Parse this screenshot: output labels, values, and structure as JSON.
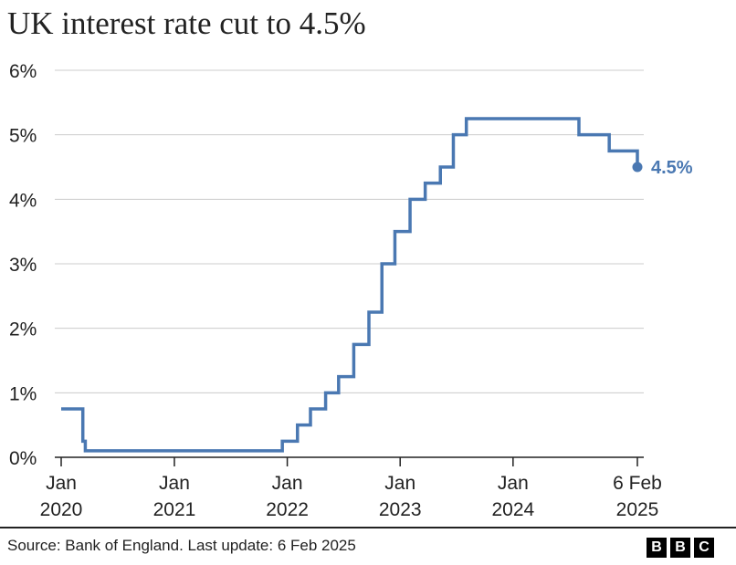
{
  "title": "UK interest rate cut to 4.5%",
  "source": "Source: Bank of England. Last update: 6 Feb 2025",
  "logo": [
    "B",
    "B",
    "C"
  ],
  "colors": {
    "line": "#4a78b2",
    "axis": "#222222",
    "grid": "#cccccc"
  },
  "chart_data": {
    "type": "line",
    "step": true,
    "title": "UK interest rate cut to 4.5%",
    "ylim": [
      0,
      6
    ],
    "yticks": [
      {
        "value": 0,
        "label": "0%"
      },
      {
        "value": 1,
        "label": "1%"
      },
      {
        "value": 2,
        "label": "2%"
      },
      {
        "value": 3,
        "label": "3%"
      },
      {
        "value": 4,
        "label": "4%"
      },
      {
        "value": 5,
        "label": "5%"
      },
      {
        "value": 6,
        "label": "6%"
      }
    ],
    "xlim": [
      "2020-01-01",
      "2025-02-06"
    ],
    "xticks": [
      {
        "date": "2020-01-01",
        "label1": "Jan",
        "label2": "2020"
      },
      {
        "date": "2021-01-01",
        "label1": "Jan",
        "label2": "2021"
      },
      {
        "date": "2022-01-01",
        "label1": "Jan",
        "label2": "2022"
      },
      {
        "date": "2023-01-01",
        "label1": "Jan",
        "label2": "2023"
      },
      {
        "date": "2024-01-01",
        "label1": "Jan",
        "label2": "2024"
      },
      {
        "date": "2025-02-06",
        "label1": "6 Feb",
        "label2": "2025"
      }
    ],
    "grid": true,
    "series": [
      {
        "color": "#4a78b2",
        "points": [
          {
            "date": "2020-01-01",
            "value": 0.75
          },
          {
            "date": "2020-03-11",
            "value": 0.25
          },
          {
            "date": "2020-03-19",
            "value": 0.1
          },
          {
            "date": "2021-12-16",
            "value": 0.25
          },
          {
            "date": "2022-02-03",
            "value": 0.5
          },
          {
            "date": "2022-03-17",
            "value": 0.75
          },
          {
            "date": "2022-05-05",
            "value": 1.0
          },
          {
            "date": "2022-06-16",
            "value": 1.25
          },
          {
            "date": "2022-08-04",
            "value": 1.75
          },
          {
            "date": "2022-09-22",
            "value": 2.25
          },
          {
            "date": "2022-11-03",
            "value": 3.0
          },
          {
            "date": "2022-12-15",
            "value": 3.5
          },
          {
            "date": "2023-02-02",
            "value": 4.0
          },
          {
            "date": "2023-03-23",
            "value": 4.25
          },
          {
            "date": "2023-05-11",
            "value": 4.5
          },
          {
            "date": "2023-06-22",
            "value": 5.0
          },
          {
            "date": "2023-08-03",
            "value": 5.25
          },
          {
            "date": "2024-08-01",
            "value": 5.0
          },
          {
            "date": "2024-11-07",
            "value": 4.75
          },
          {
            "date": "2025-02-06",
            "value": 4.5
          }
        ],
        "end_label": "4.5%"
      }
    ]
  }
}
